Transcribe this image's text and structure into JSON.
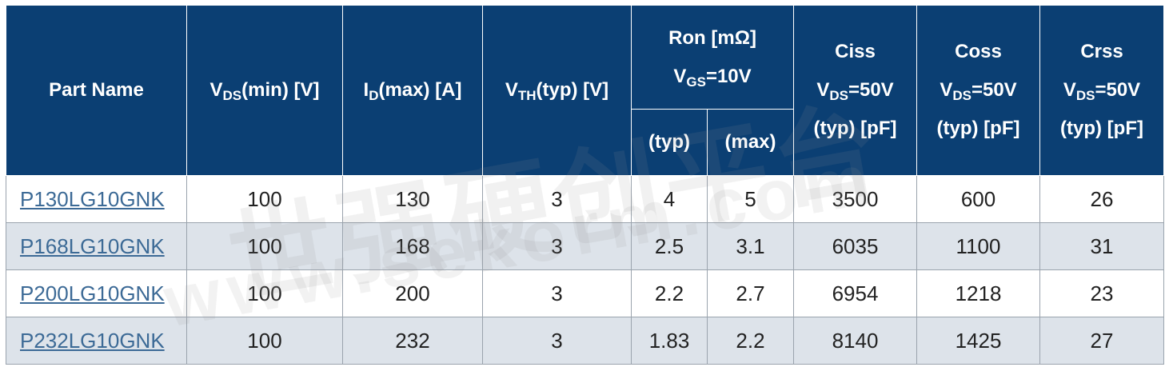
{
  "header": {
    "part_name": "Part Name",
    "vds": {
      "main": "V",
      "sub": "DS",
      "rest": "(min) [V]"
    },
    "id": {
      "main": "I",
      "sub": "D",
      "rest": "(max) [A]"
    },
    "vth": {
      "main": "V",
      "sub": "TH",
      "rest": "(typ) [V]"
    },
    "ron": {
      "line1": "Ron [mΩ]",
      "main": "V",
      "sub": "GS",
      "rest": "=10V",
      "typ": "(typ)",
      "max": "(max)"
    },
    "ciss": {
      "name": "Ciss",
      "main": "V",
      "sub": "DS",
      "rest": "=50V",
      "unit": "(typ) [pF]"
    },
    "coss": {
      "name": "Coss",
      "main": "V",
      "sub": "DS",
      "rest": "=50V",
      "unit": "(typ) [pF]"
    },
    "crss": {
      "name": "Crss",
      "main": "V",
      "sub": "DS",
      "rest": "=50V",
      "unit": "(typ) [pF]"
    }
  },
  "rows": [
    {
      "part": "P130LG10GNK",
      "vds": "100",
      "id": "130",
      "vth": "3",
      "ron_typ": "4",
      "ron_max": "5",
      "ciss": "3500",
      "coss": "600",
      "crss": "26"
    },
    {
      "part": "P168LG10GNK",
      "vds": "100",
      "id": "168",
      "vth": "3",
      "ron_typ": "2.5",
      "ron_max": "3.1",
      "ciss": "6035",
      "coss": "1100",
      "crss": "31"
    },
    {
      "part": "P200LG10GNK",
      "vds": "100",
      "id": "200",
      "vth": "3",
      "ron_typ": "2.2",
      "ron_max": "2.7",
      "ciss": "6954",
      "coss": "1218",
      "crss": "23"
    },
    {
      "part": "P232LG10GNK",
      "vds": "100",
      "id": "232",
      "vth": "3",
      "ron_typ": "1.83",
      "ron_max": "2.2",
      "ciss": "8140",
      "coss": "1425",
      "crss": "27"
    }
  ],
  "watermark": {
    "line1": "世强硬创平台",
    "line2": "www.sekorm.com"
  },
  "colors": {
    "header_bg": "#0b3f73",
    "alt_row_bg": "#dde3ea",
    "link": "#3c6a96"
  }
}
